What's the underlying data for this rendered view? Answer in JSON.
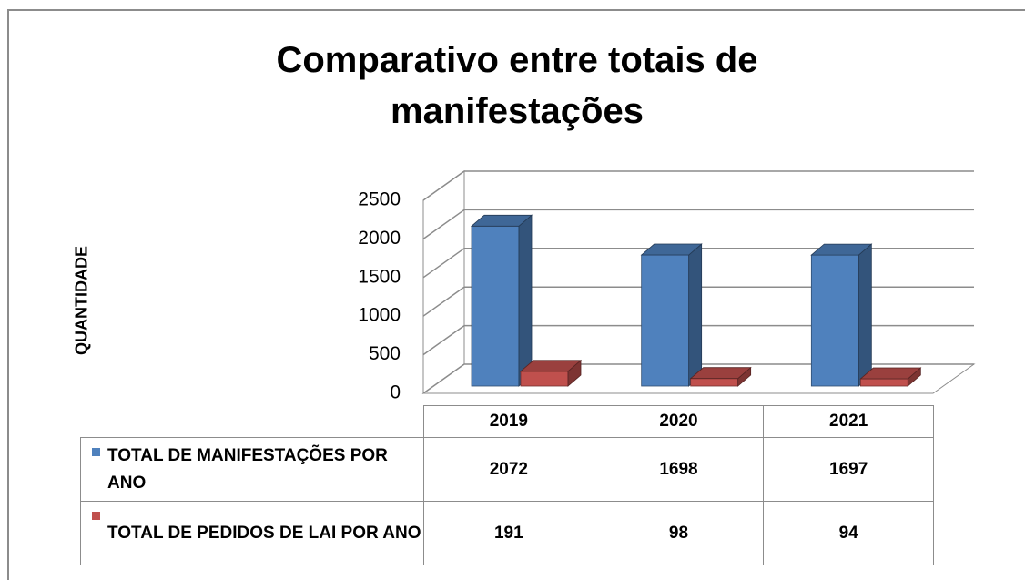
{
  "chart_data": {
    "type": "bar3d",
    "title": "Comparativo entre totais de manifestações",
    "y_label": "QUANTIDADE",
    "categories": [
      "2019",
      "2020",
      "2021"
    ],
    "series": [
      {
        "name": "TOTAL DE MANIFESTAÇÕES POR ANO",
        "color": "#4f81bd",
        "values": [
          2072,
          1698,
          1697
        ]
      },
      {
        "name": "TOTAL DE PEDIDOS DE LAI POR ANO",
        "color": "#c0504d",
        "values": [
          191,
          98,
          94
        ]
      }
    ],
    "ylim": [
      0,
      2500
    ],
    "yticks": [
      0,
      500,
      1000,
      1500,
      2000,
      2500
    ],
    "grid": true,
    "data_table": true
  }
}
